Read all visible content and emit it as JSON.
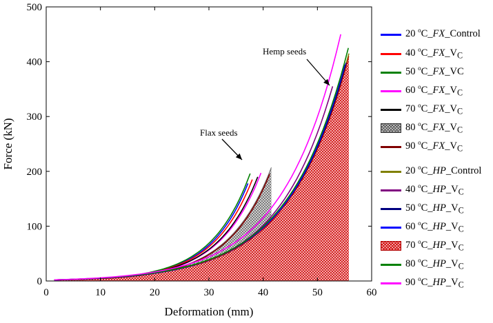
{
  "chart_data": {
    "type": "line",
    "title": "",
    "xlabel": "Deformation (mm)",
    "ylabel": "Force (kN)",
    "xlim": [
      0,
      60
    ],
    "ylim": [
      0,
      500
    ],
    "xticks": [
      0,
      10,
      20,
      30,
      40,
      50,
      60
    ],
    "yticks": [
      0,
      100,
      200,
      300,
      400,
      500
    ],
    "grid": false,
    "legend_position": "right",
    "annotations": [
      {
        "text": "Flax seeds",
        "target": [
          37.5,
          196
        ]
      },
      {
        "text": "Hemp seeds",
        "target": [
          52.8,
          355
        ]
      }
    ],
    "series": [
      {
        "name": "20 °C_FX_Control",
        "color": "#0000ff",
        "end_x": 37.2,
        "end_y": 178,
        "style": "line"
      },
      {
        "name": "40 °C_FX_VC",
        "color": "#ff0000",
        "end_x": 38.0,
        "end_y": 185,
        "style": "line"
      },
      {
        "name": "50 °C_FX_VC",
        "color": "#008000",
        "end_x": 37.6,
        "end_y": 196,
        "style": "line"
      },
      {
        "name": "60 °C_FX_VC",
        "color": "#ff00ff",
        "end_x": 39.6,
        "end_y": 197,
        "style": "line"
      },
      {
        "name": "70 °C_FX_VC",
        "color": "#000000",
        "end_x": 39.0,
        "end_y": 190,
        "style": "line"
      },
      {
        "name": "80 °C_FX_VC",
        "color": "#808080",
        "end_x": 41.5,
        "end_y": 207,
        "style": "hatched"
      },
      {
        "name": "90 °C_FX_VC",
        "color": "#800000",
        "end_x": 41.2,
        "end_y": 195,
        "style": "line"
      },
      {
        "name": "20 °C_HP_Control",
        "color": "#808000",
        "end_x": 55.8,
        "end_y": 415,
        "style": "line"
      },
      {
        "name": "40 °C_HP_VC",
        "color": "#800080",
        "end_x": 52.8,
        "end_y": 355,
        "style": "line"
      },
      {
        "name": "50 °C_HP_VC",
        "color": "#000080",
        "end_x": 55.3,
        "end_y": 398,
        "style": "line"
      },
      {
        "name": "60 °C_HP_VC",
        "color": "#0000ff",
        "end_x": 55.0,
        "end_y": 395,
        "style": "line"
      },
      {
        "name": "70 °C_HP_VC",
        "color": "#e00000",
        "end_x": 55.8,
        "end_y": 410,
        "style": "hatched"
      },
      {
        "name": "80 °C_HP_VC",
        "color": "#008000",
        "end_x": 55.7,
        "end_y": 425,
        "style": "line"
      },
      {
        "name": "90 °C_HP_VC",
        "color": "#ff00ff",
        "end_x": 54.3,
        "end_y": 450,
        "style": "line"
      }
    ]
  },
  "legend": [
    {
      "temp": "20 ",
      "deg": "o",
      "unit": "C_",
      "code": "FX",
      "suffix": "_Control",
      "sub": ""
    },
    {
      "temp": "40 ",
      "deg": "o",
      "unit": "C_",
      "code": "FX",
      "suffix": "_V",
      "sub": "C"
    },
    {
      "temp": "50 ",
      "deg": "o",
      "unit": "C_",
      "code": "FX",
      "suffix": "_VC",
      "sub": ""
    },
    {
      "temp": "60 ",
      "deg": "o",
      "unit": "C_",
      "code": "FX",
      "suffix": "_V",
      "sub": "C"
    },
    {
      "temp": "70 ",
      "deg": "o",
      "unit": "C_",
      "code": "FX",
      "suffix": "_V",
      "sub": "C"
    },
    {
      "temp": "80 ",
      "deg": "o",
      "unit": "C_",
      "code": "FX",
      "suffix": "_V",
      "sub": "C"
    },
    {
      "temp": "90 ",
      "deg": "o",
      "unit": "C_",
      "code": "FX",
      "suffix": "_V",
      "sub": "C"
    },
    {
      "temp": "20 ",
      "deg": "o",
      "unit": "C_",
      "code": "HP",
      "suffix": "_Control",
      "sub": ""
    },
    {
      "temp": "40 ",
      "deg": "o",
      "unit": "C_",
      "code": "HP",
      "suffix": "_V",
      "sub": "C"
    },
    {
      "temp": "50 ",
      "deg": "o",
      "unit": "C_",
      "code": "HP",
      "suffix": "_V",
      "sub": "C"
    },
    {
      "temp": "60 ",
      "deg": "o",
      "unit": "C_",
      "code": "HP",
      "suffix": "_V",
      "sub": "C"
    },
    {
      "temp": "70 ",
      "deg": "o",
      "unit": "C_",
      "code": "HP",
      "suffix": "_V",
      "sub": "C"
    },
    {
      "temp": "80 ",
      "deg": "o",
      "unit": "C_",
      "code": "HP",
      "suffix": "_V",
      "sub": "C"
    },
    {
      "temp": "90 ",
      "deg": "o",
      "unit": "C_",
      "code": "HP",
      "suffix": "_V",
      "sub": "C"
    }
  ]
}
